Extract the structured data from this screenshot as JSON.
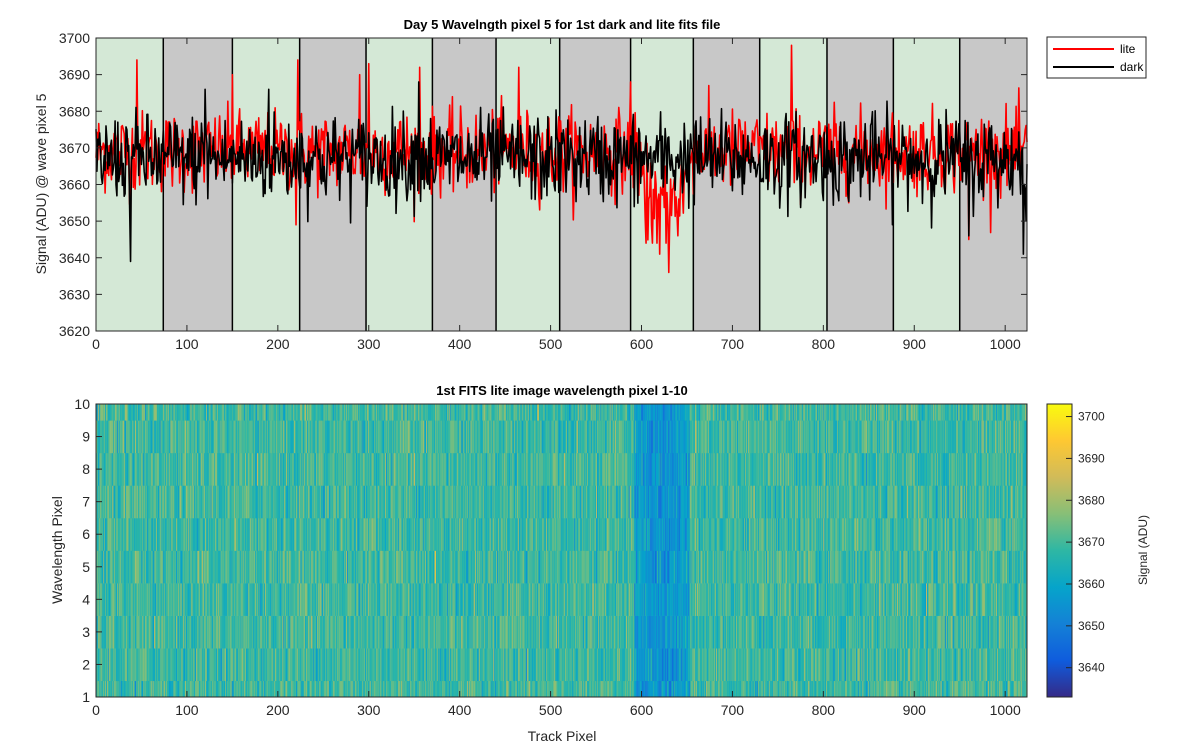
{
  "chart_data": [
    {
      "type": "line",
      "title": "Day 5 Wavelngth pixel 5 for 1st dark and lite fits file",
      "xlabel": "",
      "ylabel": "Signal (ADU) @ wave pixel 5",
      "xlim": [
        0,
        1024
      ],
      "ylim": [
        3620,
        3700
      ],
      "xticks": [
        "0",
        "100",
        "200",
        "300",
        "400",
        "500",
        "600",
        "700",
        "800",
        "900",
        "1000"
      ],
      "yticks": [
        "3620",
        "3630",
        "3640",
        "3650",
        "3660",
        "3670",
        "3680",
        "3690",
        "3700"
      ],
      "legend_position": "outside-top-right",
      "background_bands": {
        "boundaries": [
          0,
          74,
          150,
          224,
          297,
          370,
          440,
          510,
          588,
          657,
          730,
          804,
          877,
          950,
          1024
        ],
        "colors": [
          "#d4e8d6",
          "#c8c8c8"
        ]
      },
      "series": [
        {
          "name": "lite",
          "color": "#ff0000",
          "baseline": 3669,
          "noise_sd": 5.5,
          "notable_points": [
            {
              "x": 45,
              "y": 3694
            },
            {
              "x": 150,
              "y": 3690
            },
            {
              "x": 220,
              "y": 3649
            },
            {
              "x": 222,
              "y": 3694
            },
            {
              "x": 290,
              "y": 3690
            },
            {
              "x": 300,
              "y": 3693
            },
            {
              "x": 356,
              "y": 3692
            },
            {
              "x": 465,
              "y": 3692
            },
            {
              "x": 588,
              "y": 3688
            },
            {
              "x": 605,
              "y": 3644
            },
            {
              "x": 620,
              "y": 3641
            },
            {
              "x": 630,
              "y": 3636
            },
            {
              "x": 640,
              "y": 3646
            },
            {
              "x": 765,
              "y": 3698
            },
            {
              "x": 960,
              "y": 3645
            }
          ],
          "dip_region": {
            "x_start": 595,
            "x_end": 655,
            "depth": 16
          }
        },
        {
          "name": "dark",
          "color": "#000000",
          "baseline": 3667,
          "noise_sd": 6,
          "notable_points": [
            {
              "x": 38,
              "y": 3639
            },
            {
              "x": 120,
              "y": 3686
            },
            {
              "x": 190,
              "y": 3686
            },
            {
              "x": 355,
              "y": 3688
            },
            {
              "x": 960,
              "y": 3646
            },
            {
              "x": 1020,
              "y": 3641
            }
          ]
        }
      ]
    },
    {
      "type": "heatmap",
      "title": "1st FITS lite image wavelength pixel 1-10",
      "xlabel": "Track Pixel",
      "ylabel": "Wavelength Pixel",
      "xlim": [
        0,
        1024
      ],
      "ylim": [
        1,
        10
      ],
      "xticks": [
        "0",
        "100",
        "200",
        "300",
        "400",
        "500",
        "600",
        "700",
        "800",
        "900",
        "1000"
      ],
      "yticks": [
        "1",
        "2",
        "3",
        "4",
        "5",
        "6",
        "7",
        "8",
        "9",
        "10"
      ],
      "n_columns": 1024,
      "n_rows": 10,
      "baseline": 3669,
      "noise_sd": 5,
      "dip_region": {
        "x_start": 592,
        "x_end": 652,
        "depth": 14
      },
      "colorbar": {
        "label": "Signal (ADU)",
        "range": [
          3633,
          3703
        ],
        "ticks": [
          "3640",
          "3650",
          "3660",
          "3670",
          "3680",
          "3690",
          "3700"
        ],
        "colormap": "parula",
        "colormap_stops": [
          "#352a87",
          "#0f5cdd",
          "#1481d6",
          "#06a4ca",
          "#2eb7a4",
          "#87bf77",
          "#d1bb59",
          "#fec832",
          "#f9fb0e"
        ]
      }
    }
  ]
}
